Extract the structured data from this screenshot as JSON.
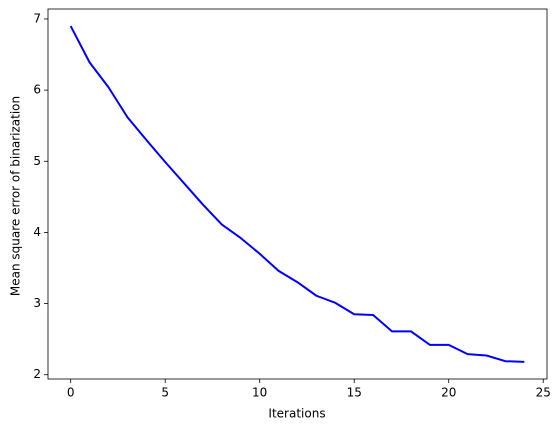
{
  "chart_data": {
    "type": "line",
    "xlabel": "Iterations",
    "ylabel": "Mean square error of binarization",
    "x": [
      0,
      1,
      2,
      3,
      4,
      5,
      6,
      7,
      8,
      9,
      10,
      11,
      12,
      13,
      14,
      15,
      16,
      17,
      18,
      19,
      20,
      21,
      22,
      23,
      24
    ],
    "series": [
      {
        "name": "mse",
        "color": "#0000ff",
        "values": [
          6.9,
          6.39,
          6.04,
          5.62,
          5.3,
          4.99,
          4.69,
          4.39,
          4.11,
          3.92,
          3.7,
          3.46,
          3.3,
          3.11,
          3.01,
          2.85,
          2.84,
          2.61,
          2.61,
          2.42,
          2.42,
          2.29,
          2.27,
          2.19,
          2.18
        ]
      }
    ],
    "xlim": [
      -1.2,
      25.2
    ],
    "ylim": [
      1.94,
      7.14
    ],
    "xticks": [
      0,
      5,
      10,
      15,
      20,
      25
    ],
    "yticks": [
      2,
      3,
      4,
      5,
      6,
      7
    ],
    "grid": false
  }
}
